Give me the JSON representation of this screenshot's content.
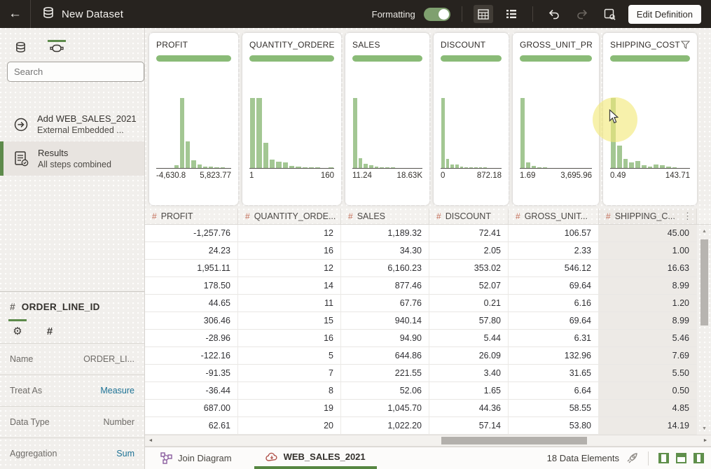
{
  "header": {
    "title": "New Dataset",
    "formatting_label": "Formatting",
    "edit_definition": "Edit Definition"
  },
  "icons": {
    "back": "←",
    "hash": "#",
    "kebab": "⋮",
    "gear": "⚙",
    "plus": "+",
    "up": "▲",
    "down": "▼",
    "left": "◄",
    "right": "►"
  },
  "sidebar": {
    "search_placeholder": "Search",
    "items": [
      {
        "title": "Add WEB_SALES_2021",
        "subtitle": "External Embedded ..."
      },
      {
        "title": "Results",
        "subtitle": "All steps combined"
      }
    ],
    "properties": {
      "title": "ORDER_LINE_ID",
      "rows": [
        {
          "label": "Name",
          "value": "ORDER_LI..."
        },
        {
          "label": "Treat As",
          "value": "Measure"
        },
        {
          "label": "Data Type",
          "value": "Number"
        },
        {
          "label": "Aggregation",
          "value": "Sum"
        }
      ]
    }
  },
  "cards": [
    {
      "title": "PROFIT",
      "min": "-4,630.8",
      "max": "5,823.77",
      "has_filter": false,
      "bars": [
        0,
        0,
        0,
        0.04,
        1,
        0.38,
        0.11,
        0.05,
        0.02,
        0.015,
        0.01,
        0.008,
        0
      ]
    },
    {
      "title": "QUANTITY_ORDERED",
      "min": "1",
      "max": "160",
      "has_filter": false,
      "bars": [
        1,
        1,
        0.36,
        0.12,
        0.09,
        0.08,
        0.03,
        0.02,
        0.012,
        0.01,
        0.006,
        0,
        0.01
      ]
    },
    {
      "title": "SALES",
      "min": "11.24",
      "max": "18.63K",
      "has_filter": false,
      "bars": [
        1,
        0.14,
        0.06,
        0.035,
        0.02,
        0.012,
        0.008,
        0.005,
        0.003,
        0,
        0,
        0,
        0
      ]
    },
    {
      "title": "DISCOUNT",
      "min": "0",
      "max": "872.18",
      "has_filter": false,
      "bars": [
        1,
        0.13,
        0.05,
        0.05,
        0.02,
        0.012,
        0.01,
        0.008,
        0.006,
        0.005,
        0,
        0,
        0
      ]
    },
    {
      "title": "GROSS_UNIT_PR...",
      "min": "1.69",
      "max": "3,695.96",
      "has_filter": false,
      "bars": [
        1,
        0.08,
        0.025,
        0.012,
        0.006,
        0.004,
        0,
        0,
        0,
        0,
        0,
        0,
        0
      ]
    },
    {
      "title": "SHIPPING_COST",
      "min": "0.49",
      "max": "143.71",
      "has_filter": true,
      "bars": [
        1,
        0.32,
        0.13,
        0.08,
        0.1,
        0.04,
        0.02,
        0.05,
        0.035,
        0.02,
        0.01,
        0,
        0
      ]
    }
  ],
  "table": {
    "columns": [
      "PROFIT",
      "QUANTITY_ORDE...",
      "SALES",
      "DISCOUNT",
      "GROSS_UNIT...",
      "SHIPPING_C..."
    ],
    "rows": [
      [
        "-1,257.76",
        "12",
        "1,189.32",
        "72.41",
        "106.57",
        "45.00"
      ],
      [
        "24.23",
        "16",
        "34.30",
        "2.05",
        "2.33",
        "1.00"
      ],
      [
        "1,951.11",
        "12",
        "6,160.23",
        "353.02",
        "546.12",
        "16.63"
      ],
      [
        "178.50",
        "14",
        "877.46",
        "52.07",
        "69.64",
        "8.99"
      ],
      [
        "44.65",
        "11",
        "67.76",
        "0.21",
        "6.16",
        "1.20"
      ],
      [
        "306.46",
        "15",
        "940.14",
        "57.80",
        "69.64",
        "8.99"
      ],
      [
        "-28.96",
        "16",
        "94.90",
        "5.44",
        "6.31",
        "5.46"
      ],
      [
        "-122.16",
        "5",
        "644.86",
        "26.09",
        "132.96",
        "7.69"
      ],
      [
        "-91.35",
        "7",
        "221.55",
        "3.40",
        "31.65",
        "5.50"
      ],
      [
        "-36.44",
        "8",
        "52.06",
        "1.65",
        "6.64",
        "0.50"
      ],
      [
        "687.00",
        "19",
        "1,045.70",
        "44.36",
        "58.55",
        "4.85"
      ],
      [
        "62.61",
        "20",
        "1,022.20",
        "57.14",
        "53.80",
        "14.19"
      ]
    ]
  },
  "footer": {
    "join_diagram": "Join Diagram",
    "dataset_tab": "WEB_SALES_2021",
    "data_elements": "18 Data Elements"
  },
  "colors": {
    "accent_green": "#5d8a4b",
    "bar_green": "#a3c793",
    "pill_green": "#8abb77",
    "link_blue": "#1d7295",
    "hash_orange": "#c4705a",
    "highlight_yellow": "#f2e878",
    "topbar_dark": "#27231f"
  }
}
